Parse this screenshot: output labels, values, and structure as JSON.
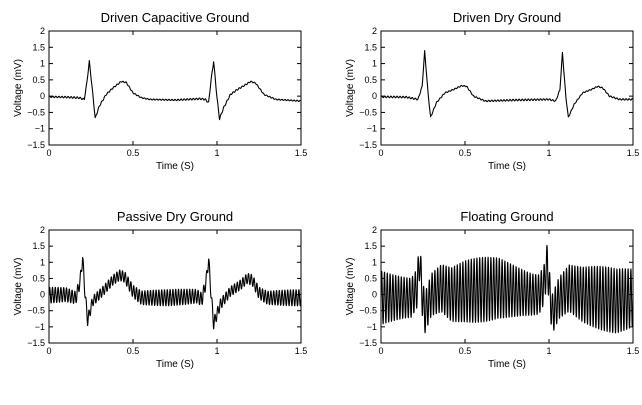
{
  "chart_data": [
    {
      "type": "line",
      "title": "Driven Capacitive Ground",
      "xlabel": "Time (S)",
      "ylabel": "Voltage (mV)",
      "xlim": [
        0,
        1.5
      ],
      "ylim": [
        -1.5,
        2
      ],
      "xticks": [
        0,
        0.5,
        1,
        1.5
      ],
      "xtick_labels": [
        "0",
        "0.5",
        "1",
        "1.5"
      ],
      "yticks": [
        -1.5,
        -1,
        -0.5,
        0,
        0.5,
        1,
        1.5,
        2
      ],
      "ytick_labels": [
        "−1.5",
        "−1",
        "−0.5",
        "0",
        "0.5",
        "1",
        "1.5",
        "2"
      ],
      "grid": false,
      "noise_amplitude_mv": 0.02,
      "noise_frequency_hz": 55,
      "series": [
        {
          "x": [
            0,
            0.1,
            0.18,
            0.21,
            0.225,
            0.24,
            0.26,
            0.275,
            0.3,
            0.34,
            0.38,
            0.43,
            0.46,
            0.5,
            0.55,
            0.6,
            0.75,
            0.9,
            0.93,
            0.95,
            0.965,
            0.98,
            1.0,
            1.015,
            1.04,
            1.08,
            1.12,
            1.17,
            1.2,
            1.23,
            1.28,
            1.35,
            1.5
          ],
          "y": [
            -0.02,
            -0.03,
            -0.05,
            -0.1,
            0.4,
            1.07,
            0.1,
            -0.68,
            -0.3,
            0.05,
            0.25,
            0.45,
            0.42,
            0.1,
            -0.05,
            -0.1,
            -0.12,
            -0.08,
            -0.1,
            -0.2,
            0.5,
            1.07,
            -0.05,
            -0.7,
            -0.35,
            0.05,
            0.2,
            0.35,
            0.45,
            0.4,
            0.05,
            -0.1,
            -0.15
          ]
        }
      ]
    },
    {
      "type": "line",
      "title": "Driven Dry Ground",
      "xlabel": "Time (S)",
      "ylabel": "Voltage (mV)",
      "xlim": [
        0,
        1.5
      ],
      "ylim": [
        -1.5,
        2
      ],
      "xticks": [
        0,
        0.5,
        1,
        1.5
      ],
      "xtick_labels": [
        "0",
        "0.5",
        "1",
        "1.5"
      ],
      "yticks": [
        -1.5,
        -1,
        -0.5,
        0,
        0.5,
        1,
        1.5,
        2
      ],
      "ytick_labels": [
        "−1.5",
        "−1",
        "−0.5",
        "0",
        "0.5",
        "1",
        "1.5",
        "2"
      ],
      "grid": false,
      "noise_amplitude_mv": 0.02,
      "noise_frequency_hz": 55,
      "series": [
        {
          "x": [
            0,
            0.15,
            0.22,
            0.245,
            0.26,
            0.28,
            0.295,
            0.33,
            0.38,
            0.43,
            0.48,
            0.51,
            0.55,
            0.62,
            0.8,
            1.0,
            1.04,
            1.065,
            1.08,
            1.1,
            1.115,
            1.15,
            1.2,
            1.25,
            1.29,
            1.32,
            1.36,
            1.42,
            1.5
          ],
          "y": [
            -0.02,
            -0.03,
            -0.1,
            0.3,
            1.38,
            0.1,
            -0.65,
            -0.2,
            0.1,
            0.2,
            0.32,
            0.3,
            0.0,
            -0.15,
            -0.12,
            -0.1,
            -0.15,
            0.2,
            1.33,
            0.0,
            -0.65,
            -0.25,
            0.1,
            0.2,
            0.3,
            0.25,
            0.0,
            -0.1,
            -0.1
          ]
        }
      ]
    },
    {
      "type": "line",
      "title": "Passive Dry Ground",
      "xlabel": "Time (S)",
      "ylabel": "Voltage (mV)",
      "xlim": [
        0,
        1.5
      ],
      "ylim": [
        -1.5,
        2
      ],
      "xticks": [
        0,
        0.5,
        1,
        1.5
      ],
      "xtick_labels": [
        "0",
        "0.5",
        "1",
        "1.5"
      ],
      "yticks": [
        -1.5,
        -1,
        -0.5,
        0,
        0.5,
        1,
        1.5,
        2
      ],
      "ytick_labels": [
        "−1.5",
        "−1",
        "−0.5",
        "0",
        "0.5",
        "1",
        "1.5",
        "2"
      ],
      "grid": false,
      "noise_amplitude_mv": 0.2,
      "noise_frequency_hz": 60,
      "series": [
        {
          "x": [
            0,
            0.1,
            0.16,
            0.185,
            0.2,
            0.215,
            0.23,
            0.26,
            0.32,
            0.38,
            0.42,
            0.45,
            0.5,
            0.55,
            0.7,
            0.88,
            0.91,
            0.935,
            0.95,
            0.965,
            0.98,
            1.02,
            1.08,
            1.14,
            1.18,
            1.21,
            1.25,
            1.3,
            1.5
          ],
          "y": [
            -0.02,
            0.0,
            -0.1,
            0.4,
            1.15,
            0.0,
            -0.8,
            -0.2,
            0.1,
            0.45,
            0.6,
            0.55,
            0.1,
            -0.1,
            -0.1,
            -0.05,
            -0.15,
            0.4,
            1.1,
            0.0,
            -0.9,
            -0.3,
            0.1,
            0.3,
            0.5,
            0.45,
            0.05,
            -0.1,
            -0.1
          ]
        }
      ]
    },
    {
      "type": "line",
      "title": "Floating Ground",
      "xlabel": "Time (S)",
      "ylabel": "Voltage (mV)",
      "xlim": [
        0,
        1.5
      ],
      "ylim": [
        -1.5,
        2
      ],
      "xticks": [
        0,
        0.5,
        1,
        1.5
      ],
      "xtick_labels": [
        "0",
        "0.5",
        "1",
        "1.5"
      ],
      "yticks": [
        -1.5,
        -1,
        -0.5,
        0,
        0.5,
        1,
        1.5,
        2
      ],
      "ytick_labels": [
        "−1.5",
        "−1",
        "−0.5",
        "0",
        "0.5",
        "1",
        "1.5",
        "2"
      ],
      "grid": false,
      "noise_amplitude_mv": 0.8,
      "noise_frequency_hz": 60,
      "series": [
        {
          "x": [
            0,
            0.1,
            0.18,
            0.215,
            0.23,
            0.245,
            0.26,
            0.3,
            0.36,
            0.42,
            0.5,
            0.6,
            0.7,
            0.8,
            0.9,
            0.94,
            0.97,
            0.99,
            1.005,
            1.02,
            1.06,
            1.12,
            1.2,
            1.3,
            1.4,
            1.5
          ],
          "y": [
            -0.1,
            -0.1,
            -0.1,
            0.2,
            1.1,
            0.0,
            -0.6,
            0.0,
            0.2,
            0.0,
            0.1,
            0.15,
            0.2,
            0.1,
            0.0,
            0.0,
            0.3,
            1.0,
            0.0,
            -0.6,
            -0.1,
            0.2,
            0.0,
            -0.1,
            -0.2,
            -0.1
          ]
        }
      ]
    }
  ]
}
